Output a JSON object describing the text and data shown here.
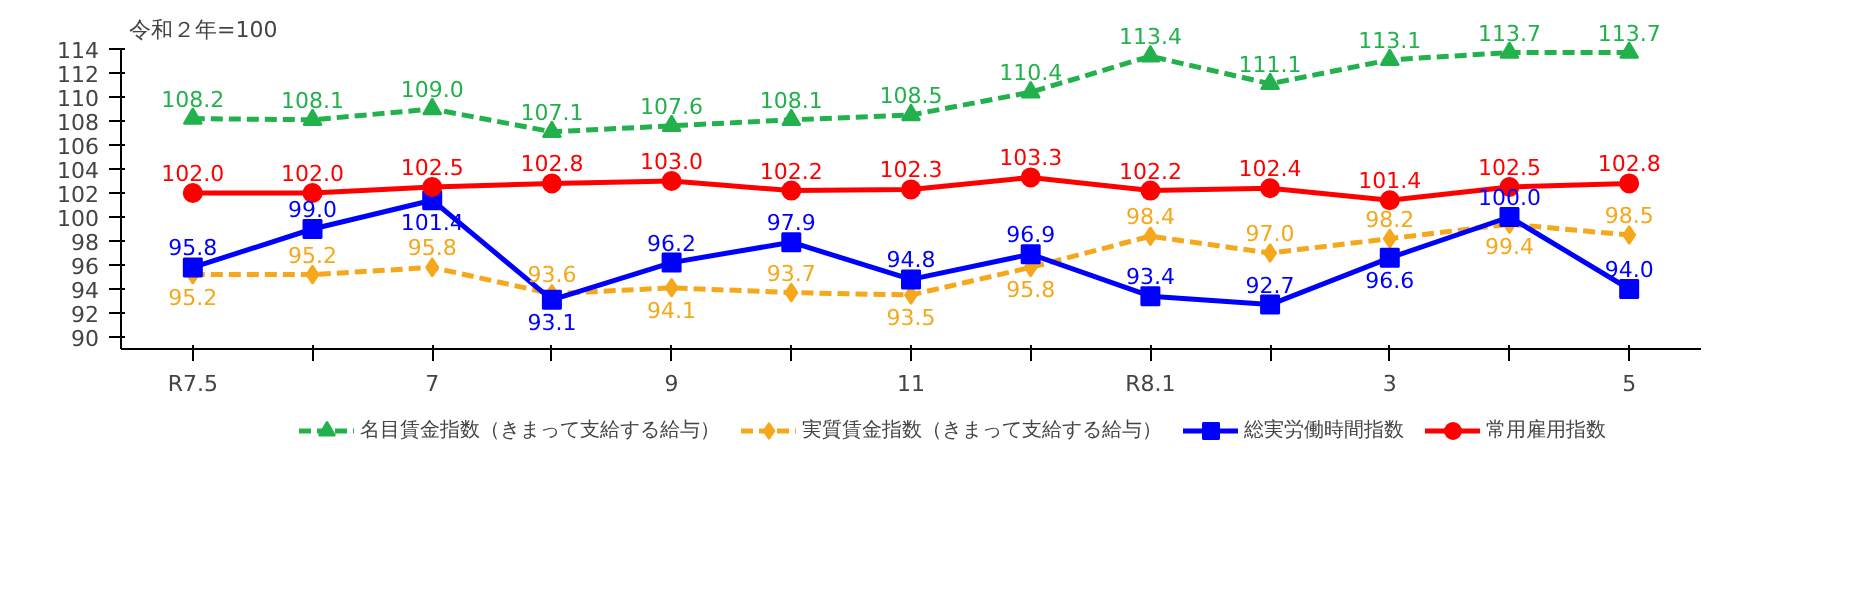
{
  "chart_data": {
    "type": "line",
    "ylabel": "令和２年=100",
    "categories": [
      "R7.5",
      null,
      "7",
      null,
      "9",
      null,
      "11",
      null,
      "R8.1",
      null,
      "3",
      null,
      "5"
    ],
    "ylim": [
      89,
      114
    ],
    "yticks": [
      90,
      92,
      94,
      96,
      98,
      100,
      102,
      104,
      106,
      108,
      110,
      112,
      114
    ],
    "grid": false,
    "legend": "bottom",
    "data_labels": true,
    "series": [
      {
        "name": "名目賃金指数（きまって支給する給与）",
        "color": "#22b14c",
        "marker": "triangle",
        "line_style": "dashed",
        "values": [
          108.2,
          108.1,
          109.0,
          107.1,
          107.6,
          108.1,
          108.5,
          110.4,
          113.4,
          111.1,
          113.1,
          113.7,
          113.7
        ],
        "value_labels": [
          "108.2",
          "108.1",
          "109.0",
          "107.1",
          "107.6",
          "108.1",
          "108.5",
          "110.4",
          "113.4",
          "111.1",
          "113.1",
          "113.7",
          "113.7"
        ]
      },
      {
        "name": "実質賃金指数（きまって支給する給与）",
        "color": "#f5a81c",
        "marker": "diamond",
        "line_style": "dashed",
        "values": [
          95.2,
          95.2,
          95.8,
          93.6,
          94.1,
          93.7,
          93.5,
          95.8,
          98.4,
          97.0,
          98.2,
          99.4,
          98.5
        ],
        "value_labels": [
          "95.2",
          "95.2",
          "95.8",
          "93.6",
          "94.1",
          "93.7",
          "93.5",
          "95.8",
          "98.4",
          "97.0",
          "98.2",
          "99.4",
          "98.5"
        ]
      },
      {
        "name": "総実労働時間指数",
        "color": "#0000ff",
        "marker": "square",
        "line_style": "solid",
        "values": [
          95.8,
          99.0,
          101.4,
          93.1,
          96.2,
          97.9,
          94.8,
          96.9,
          93.4,
          92.7,
          96.6,
          100.0,
          94.0
        ],
        "value_labels": [
          "95.8",
          "99.0",
          "101.4",
          "93.1",
          "96.2",
          "97.9",
          "94.8",
          "96.9",
          "93.4",
          "92.7",
          "96.6",
          "100.0",
          "94.0"
        ]
      },
      {
        "name": "常用雇用指数",
        "color": "#ff0000",
        "marker": "circle",
        "line_style": "solid",
        "values": [
          102.0,
          102.0,
          102.5,
          102.8,
          103.0,
          102.2,
          102.3,
          103.3,
          102.2,
          102.4,
          101.4,
          102.5,
          102.8
        ],
        "value_labels": [
          "102.0",
          "102.0",
          "102.5",
          "102.8",
          "103.0",
          "102.2",
          "102.3",
          "103.3",
          "102.2",
          "102.4",
          "101.4",
          "102.5",
          "102.8"
        ]
      }
    ]
  }
}
